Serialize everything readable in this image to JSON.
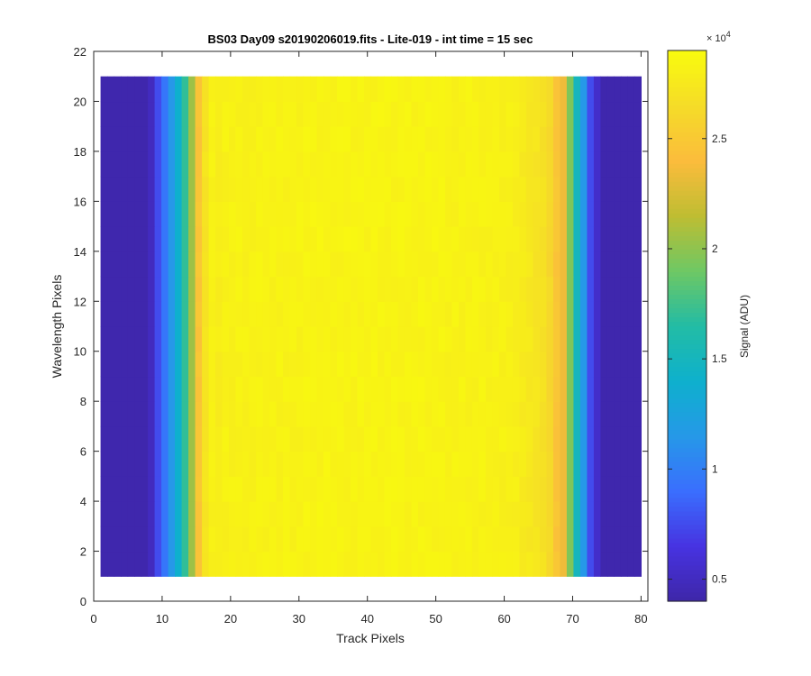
{
  "chart_data": {
    "type": "heatmap",
    "title": "BS03 Day09  s20190206019.fits - Lite-019 - int time = 15 sec",
    "xlabel": "Track Pixels",
    "ylabel": "Wavelength Pixels",
    "xlim": [
      0,
      81
    ],
    "ylim": [
      0,
      22
    ],
    "x_ticks": [
      "0",
      "10",
      "20",
      "30",
      "40",
      "50",
      "60",
      "70",
      "80"
    ],
    "y_ticks": [
      "0",
      "2",
      "4",
      "6",
      "8",
      "10",
      "12",
      "14",
      "16",
      "18",
      "20",
      "22"
    ],
    "x_range": [
      1,
      80
    ],
    "y_range": [
      1,
      21
    ],
    "grid": false,
    "colorbar": {
      "label": "Signal (ADU)",
      "exponent_label": "× 10",
      "exponent_power": "4",
      "clim": [
        0.4,
        2.9
      ],
      "ticks": [
        "0.5",
        "1",
        "1.5",
        "2",
        "2.5"
      ],
      "tick_values": [
        0.5,
        1.0,
        1.5,
        2.0,
        2.5
      ],
      "colormap": "parula"
    },
    "column_profile_x10e4": [
      0.42,
      0.42,
      0.42,
      0.42,
      0.42,
      0.42,
      0.42,
      0.5,
      0.75,
      0.95,
      1.15,
      1.4,
      1.7,
      2.05,
      2.5,
      2.75,
      2.85,
      2.82,
      2.85,
      2.85,
      2.86,
      2.85,
      2.85,
      2.86,
      2.86,
      2.86,
      2.86,
      2.86,
      2.86,
      2.86,
      2.87,
      2.87,
      2.87,
      2.87,
      2.87,
      2.87,
      2.87,
      2.87,
      2.87,
      2.87,
      2.87,
      2.87,
      2.87,
      2.87,
      2.87,
      2.87,
      2.87,
      2.87,
      2.87,
      2.87,
      2.87,
      2.86,
      2.86,
      2.86,
      2.86,
      2.86,
      2.86,
      2.85,
      2.85,
      2.85,
      2.84,
      2.83,
      2.8,
      2.78,
      2.75,
      2.72,
      2.65,
      2.5,
      2.35,
      1.95,
      1.5,
      1.15,
      0.75,
      0.55,
      0.42,
      0.42,
      0.42,
      0.42,
      0.42,
      0.42
    ]
  }
}
